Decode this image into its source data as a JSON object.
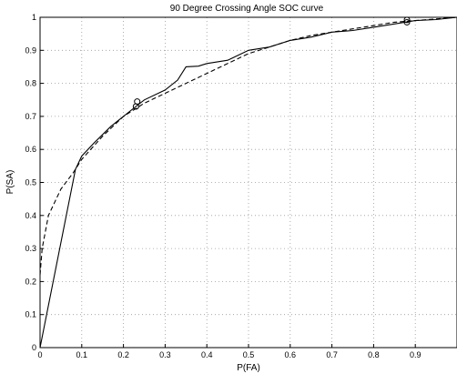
{
  "chart_data": {
    "type": "line",
    "title": "90 Degree Crossing Angle SOC curve",
    "xlabel": "P(FA)",
    "ylabel": "P(SA)",
    "xlim": [
      0,
      1
    ],
    "ylim": [
      0,
      1
    ],
    "grid": true,
    "x_ticks": [
      "0",
      "0.1",
      "0.2",
      "0.3",
      "0.4",
      "0.5",
      "0.6",
      "0.7",
      "0.8",
      "0.9"
    ],
    "y_ticks": [
      "0",
      "0.1",
      "0.2",
      "0.3",
      "0.4",
      "0.5",
      "0.6",
      "0.7",
      "0.8",
      "0.9",
      "1"
    ],
    "series": [
      {
        "style": "solid",
        "color": "#000000",
        "points": [
          [
            0.0,
            0.0
          ],
          [
            0.085,
            0.54
          ],
          [
            0.1,
            0.58
          ],
          [
            0.13,
            0.62
          ],
          [
            0.17,
            0.67
          ],
          [
            0.2,
            0.7
          ],
          [
            0.23,
            0.73
          ],
          [
            0.25,
            0.75
          ],
          [
            0.3,
            0.78
          ],
          [
            0.33,
            0.81
          ],
          [
            0.35,
            0.85
          ],
          [
            0.38,
            0.852
          ],
          [
            0.4,
            0.86
          ],
          [
            0.45,
            0.87
          ],
          [
            0.5,
            0.9
          ],
          [
            0.55,
            0.91
          ],
          [
            0.6,
            0.93
          ],
          [
            0.65,
            0.94
          ],
          [
            0.7,
            0.955
          ],
          [
            0.75,
            0.96
          ],
          [
            0.8,
            0.97
          ],
          [
            0.85,
            0.98
          ],
          [
            0.9,
            0.99
          ],
          [
            0.95,
            0.993
          ],
          [
            1.0,
            1.0
          ]
        ],
        "markers": [
          [
            0.23,
            0.73
          ],
          [
            0.88,
            0.985
          ]
        ]
      },
      {
        "style": "dashed",
        "color": "#000000",
        "points": [
          [
            0.0,
            0.22
          ],
          [
            0.005,
            0.3
          ],
          [
            0.02,
            0.4
          ],
          [
            0.05,
            0.48
          ],
          [
            0.08,
            0.53
          ],
          [
            0.1,
            0.57
          ],
          [
            0.15,
            0.64
          ],
          [
            0.2,
            0.7
          ],
          [
            0.25,
            0.74
          ],
          [
            0.3,
            0.77
          ],
          [
            0.35,
            0.8
          ],
          [
            0.4,
            0.83
          ],
          [
            0.45,
            0.86
          ],
          [
            0.5,
            0.89
          ],
          [
            0.55,
            0.91
          ],
          [
            0.6,
            0.93
          ],
          [
            0.65,
            0.945
          ],
          [
            0.7,
            0.955
          ],
          [
            0.75,
            0.965
          ],
          [
            0.8,
            0.975
          ],
          [
            0.85,
            0.985
          ],
          [
            0.9,
            0.99
          ],
          [
            0.95,
            0.995
          ],
          [
            1.0,
            1.0
          ]
        ],
        "markers": [
          [
            0.233,
            0.745
          ],
          [
            0.88,
            0.992
          ]
        ]
      }
    ]
  }
}
